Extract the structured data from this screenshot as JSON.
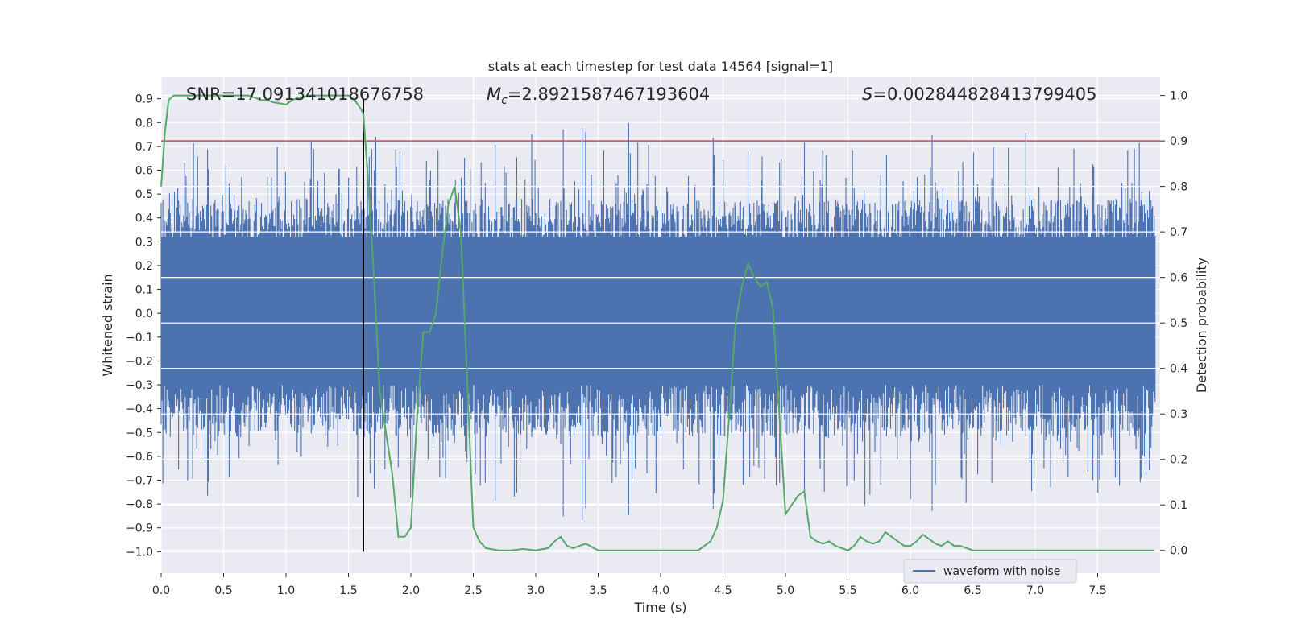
{
  "chart_data": {
    "type": "line",
    "title": "stats at each timestep for test data 14564 [signal=1]",
    "xlabel": "Time (s)",
    "ylabel": "Whitened strain",
    "y2label": "Detection probability",
    "xlim": [
      0.0,
      8.0
    ],
    "ylim": [
      -1.09,
      0.99
    ],
    "y2lim": [
      -0.05,
      1.04
    ],
    "grid": true,
    "x_ticks": [
      "0.0",
      "0.5",
      "1.0",
      "1.5",
      "2.0",
      "2.5",
      "3.0",
      "3.5",
      "4.0",
      "4.5",
      "5.0",
      "5.5",
      "6.0",
      "6.5",
      "7.0",
      "7.5"
    ],
    "y_ticks": [
      "0.9",
      "0.8",
      "0.7",
      "0.6",
      "0.5",
      "0.4",
      "0.3",
      "0.2",
      "0.1",
      "0.0",
      "−0.1",
      "−0.2",
      "−0.3",
      "−0.4",
      "−0.5",
      "−0.6",
      "−0.7",
      "−0.8",
      "−0.9",
      "−1.0"
    ],
    "y2_ticks": [
      "1.0",
      "0.9",
      "0.8",
      "0.7",
      "0.6",
      "0.5",
      "0.4",
      "0.3",
      "0.2",
      "0.1",
      "0.0"
    ],
    "annotations": {
      "snr": "SNR=17.091341018676758",
      "mc_symbol": "M",
      "mc_sub": "c",
      "mc_value": "=2.8921587467193604",
      "s_symbol": "S",
      "s_value": "=0.002844828413799405"
    },
    "threshold": {
      "axis": "y2",
      "value": 0.9,
      "color": "#c44e52"
    },
    "marker_line": {
      "x": 1.62,
      "y_range": [
        -1.0,
        0.9
      ],
      "color": "#000000"
    },
    "waveform": {
      "name": "waveform with noise",
      "color": "#4c72b0",
      "samples": 1200,
      "body_amplitude": 0.28,
      "peak_amplitude": 0.6,
      "seed": 14564
    },
    "probability": {
      "color": "#55a868",
      "x": [
        0.0,
        0.03,
        0.06,
        0.1,
        0.15,
        0.2,
        0.3,
        0.4,
        0.5,
        0.6,
        0.7,
        0.8,
        0.85,
        0.9,
        1.0,
        1.05,
        1.1,
        1.2,
        1.3,
        1.4,
        1.5,
        1.55,
        1.6,
        1.62,
        1.66,
        1.7,
        1.75,
        1.8,
        1.85,
        1.9,
        1.95,
        2.0,
        2.05,
        2.1,
        2.15,
        2.2,
        2.25,
        2.3,
        2.35,
        2.4,
        2.45,
        2.5,
        2.55,
        2.6,
        2.7,
        2.8,
        2.9,
        3.0,
        3.1,
        3.15,
        3.2,
        3.25,
        3.3,
        3.35,
        3.4,
        3.5,
        3.6,
        3.7,
        3.8,
        3.9,
        4.0,
        4.1,
        4.2,
        4.3,
        4.35,
        4.4,
        4.45,
        4.5,
        4.55,
        4.6,
        4.65,
        4.7,
        4.75,
        4.8,
        4.85,
        4.9,
        4.95,
        5.0,
        5.05,
        5.1,
        5.15,
        5.2,
        5.25,
        5.3,
        5.35,
        5.4,
        5.45,
        5.5,
        5.55,
        5.6,
        5.65,
        5.7,
        5.75,
        5.8,
        5.85,
        5.9,
        5.95,
        6.0,
        6.05,
        6.1,
        6.15,
        6.2,
        6.25,
        6.3,
        6.35,
        6.4,
        6.45,
        6.5,
        6.6,
        6.7,
        6.8,
        6.9,
        7.0,
        7.1,
        7.2,
        7.3,
        7.4,
        7.5,
        7.6,
        7.7,
        7.8,
        7.9,
        7.95
      ],
      "y": [
        0.8,
        0.92,
        0.99,
        1.0,
        1.0,
        1.0,
        1.0,
        1.0,
        1.0,
        1.0,
        1.0,
        0.99,
        0.99,
        0.985,
        0.98,
        0.99,
        0.995,
        1.0,
        1.0,
        1.0,
        1.0,
        0.99,
        0.97,
        0.96,
        0.8,
        0.62,
        0.35,
        0.26,
        0.17,
        0.03,
        0.03,
        0.05,
        0.3,
        0.48,
        0.48,
        0.52,
        0.65,
        0.76,
        0.8,
        0.7,
        0.38,
        0.05,
        0.02,
        0.005,
        0.0,
        0.0,
        0.003,
        0.0,
        0.005,
        0.02,
        0.03,
        0.01,
        0.005,
        0.01,
        0.015,
        0.0,
        0.0,
        0.0,
        0.0,
        0.0,
        0.0,
        0.0,
        0.0,
        0.0,
        0.01,
        0.02,
        0.05,
        0.11,
        0.3,
        0.5,
        0.58,
        0.63,
        0.6,
        0.58,
        0.59,
        0.53,
        0.3,
        0.08,
        0.1,
        0.12,
        0.13,
        0.03,
        0.02,
        0.015,
        0.02,
        0.01,
        0.005,
        0.0,
        0.01,
        0.03,
        0.02,
        0.015,
        0.02,
        0.04,
        0.03,
        0.02,
        0.01,
        0.01,
        0.02,
        0.035,
        0.025,
        0.015,
        0.01,
        0.02,
        0.01,
        0.01,
        0.005,
        0.0,
        0.0,
        0.0,
        0.0,
        0.0,
        0.0,
        0.0,
        0.0,
        0.0,
        0.0,
        0.0,
        0.0,
        0.0,
        0.0,
        0.0,
        0.0
      ]
    }
  }
}
